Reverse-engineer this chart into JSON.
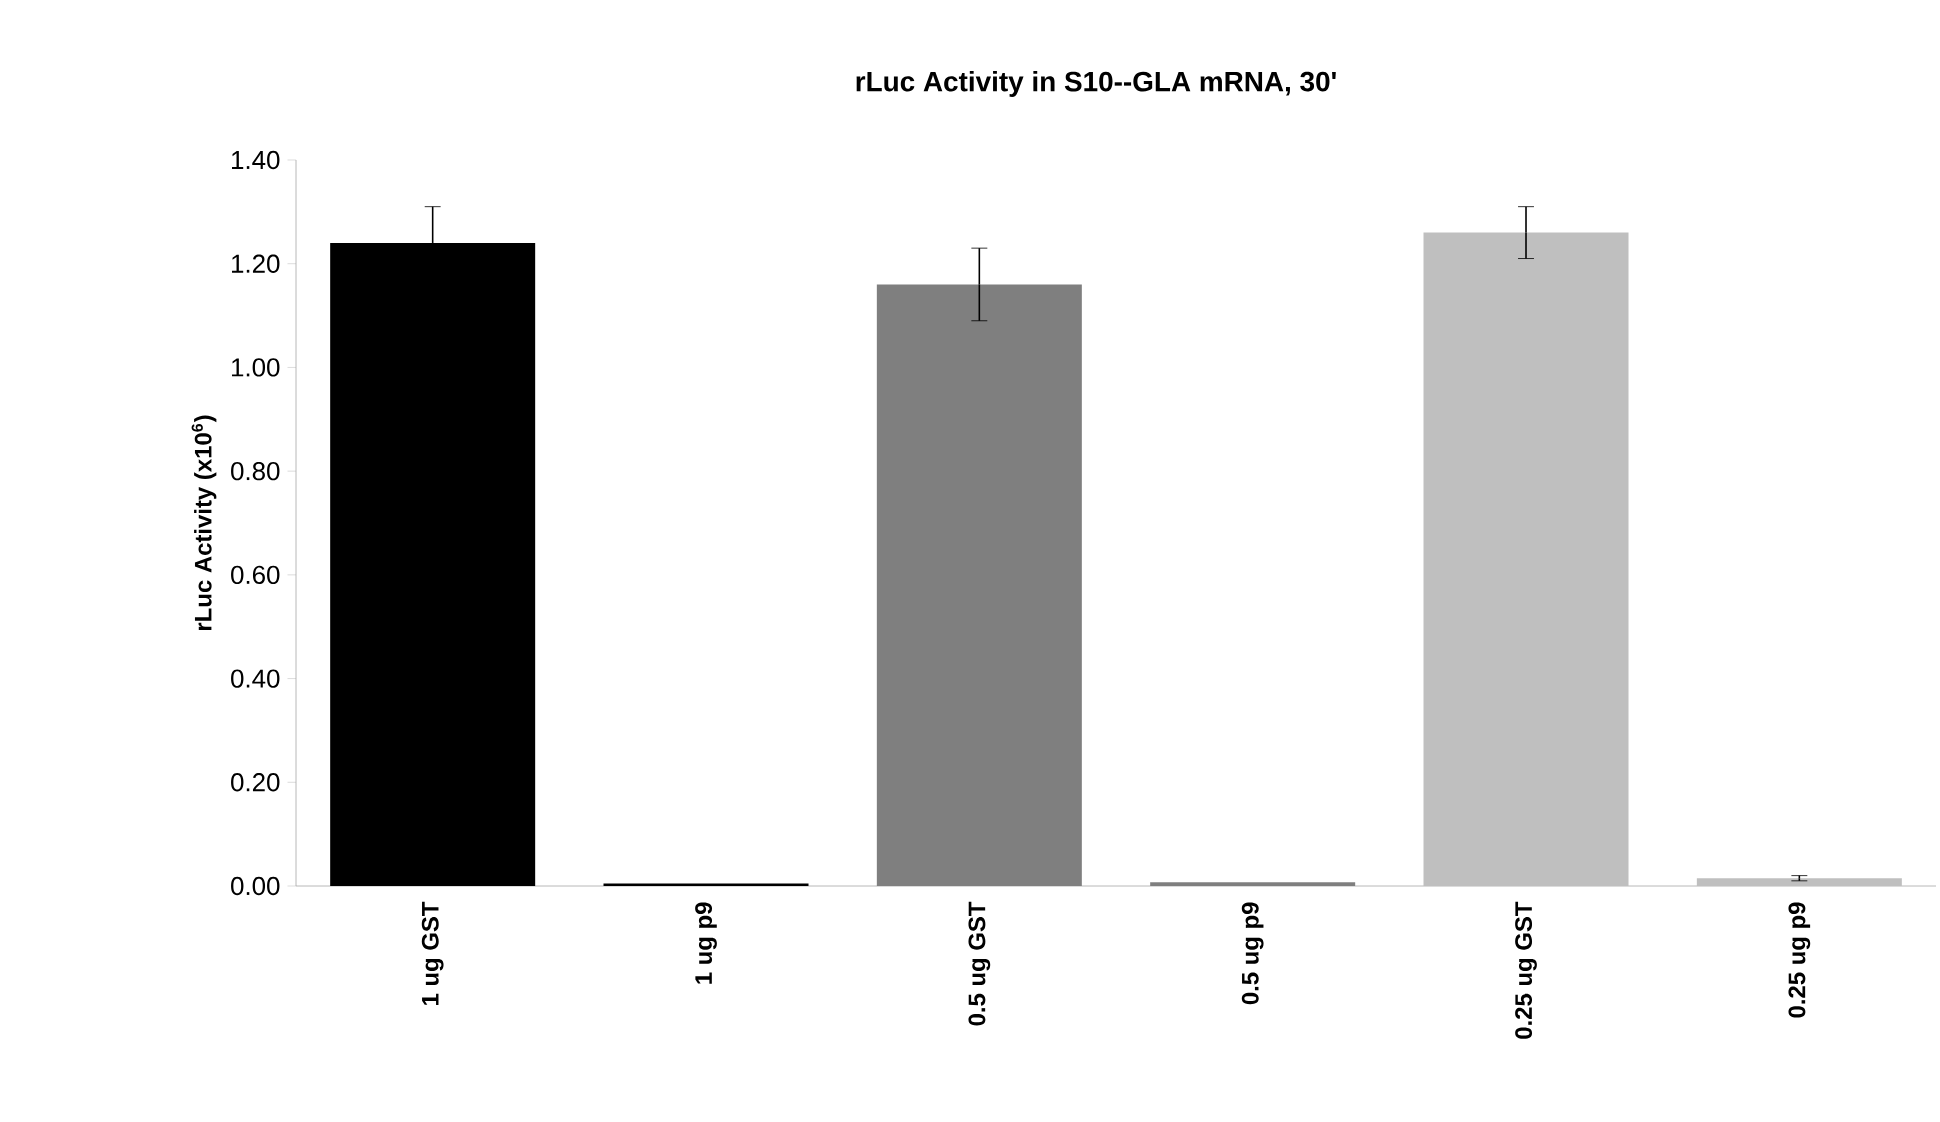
{
  "chart_data": {
    "type": "bar",
    "title": "rLuc Activity in S10--GLA mRNA, 30'",
    "ylabel": "rLuc Activity (x10$^{6}$)",
    "categories": [
      "1 ug GST",
      "1 ug p9",
      "0.5 ug GST",
      "0.5 ug p9",
      "0.25 ug GST",
      "0.25 ug p9"
    ],
    "values": [
      1.24,
      0.005,
      1.16,
      0.007,
      1.26,
      0.015
    ],
    "errors": [
      0.07,
      null,
      0.07,
      null,
      0.05,
      0.005
    ],
    "colors": [
      "#000000",
      "#000000",
      "#7f7f7f",
      "#7f7f7f",
      "#bfbfbf",
      "#bfbfbf"
    ],
    "ylim": [
      0,
      1.4
    ],
    "yticks": [
      {
        "value": 0,
        "label": "0.00"
      },
      {
        "value": 0.2,
        "label": "0.20"
      },
      {
        "value": 0.4,
        "label": "0.40"
      },
      {
        "value": 0.6,
        "label": "0.60"
      },
      {
        "value": 0.8,
        "label": "0.80"
      },
      {
        "value": 1.0,
        "label": "1.00"
      },
      {
        "value": 1.2,
        "label": "1.20"
      },
      {
        "value": 1.4,
        "label": "1.40"
      }
    ],
    "grid": false
  }
}
